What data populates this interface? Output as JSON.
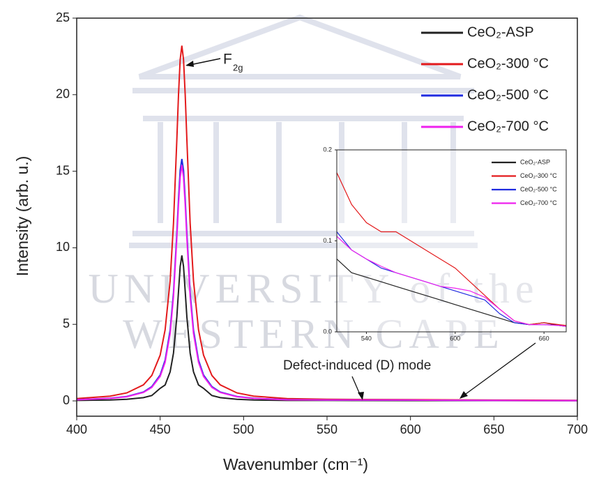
{
  "chart_data": [
    {
      "type": "line",
      "xlabel": "Wavenumber (cm⁻¹)",
      "ylabel": "Intensity (arb. u.)",
      "xlim": [
        400,
        700
      ],
      "ylim": [
        -1,
        25
      ],
      "xticks": [
        400,
        450,
        500,
        550,
        600,
        650,
        700
      ],
      "yticks": [
        0,
        5,
        10,
        15,
        20,
        25
      ],
      "x": [
        400,
        420,
        430,
        440,
        445,
        450,
        453,
        456,
        458,
        460,
        461,
        462,
        463,
        464,
        465,
        466,
        468,
        470,
        473,
        476,
        481,
        486,
        496,
        506,
        526,
        550,
        600,
        650,
        700
      ],
      "series": [
        {
          "name": "CeO₂-ASP",
          "color": "#222222",
          "values": [
            0.03,
            0.06,
            0.1,
            0.21,
            0.35,
            0.82,
            1.04,
            1.9,
            3.12,
            5.48,
            7.16,
            8.78,
            9.5,
            8.78,
            7.16,
            5.48,
            3.12,
            1.9,
            1.04,
            0.82,
            0.35,
            0.21,
            0.1,
            0.06,
            0.03,
            0.03,
            0.02,
            0.02,
            0.01
          ]
        },
        {
          "name": "CeO₂-300 °C",
          "color": "#e31a1c",
          "values": [
            0.15,
            0.31,
            0.52,
            1.05,
            1.66,
            2.99,
            4.64,
            7.84,
            11.6,
            17.06,
            20.0,
            22.3,
            23.2,
            22.3,
            20.0,
            17.06,
            11.6,
            7.84,
            4.64,
            2.99,
            1.66,
            1.05,
            0.52,
            0.31,
            0.15,
            0.1,
            0.08,
            0.05,
            0.04
          ]
        },
        {
          "name": "CeO₂-500 °C",
          "color": "#1f2be0",
          "values": [
            0.08,
            0.17,
            0.29,
            0.58,
            0.93,
            1.69,
            2.66,
            4.62,
            7.07,
            10.94,
            13.19,
            15.06,
            15.8,
            15.06,
            13.19,
            10.94,
            7.07,
            4.62,
            2.66,
            1.69,
            0.93,
            0.58,
            0.29,
            0.17,
            0.08,
            0.06,
            0.05,
            0.03,
            0.02
          ]
        },
        {
          "name": "CeO₂-700 °C",
          "color": "#ee22ee",
          "values": [
            0.07,
            0.16,
            0.27,
            0.55,
            0.88,
            1.6,
            2.52,
            4.4,
            6.8,
            10.6,
            12.8,
            14.6,
            15.4,
            14.6,
            12.8,
            10.6,
            6.8,
            4.4,
            2.52,
            1.6,
            0.88,
            0.55,
            0.27,
            0.16,
            0.07,
            0.06,
            0.05,
            0.03,
            0.02
          ]
        }
      ],
      "peak_label": {
        "base": "F",
        "sub": "2g"
      },
      "annotation": "Defect-induced (D) mode",
      "watermark": [
        "UNIVERSITY of the",
        "WESTERN CAPE"
      ]
    },
    {
      "type": "line",
      "xlim": [
        520,
        675
      ],
      "ylim": [
        0,
        0.2
      ],
      "xticks": [
        540,
        600,
        660
      ],
      "yticks": [
        {
          "value": 0,
          "label": "0.0"
        },
        0.1,
        0.2
      ],
      "x": [
        520,
        530,
        540,
        550,
        560,
        570,
        580,
        590,
        600,
        610,
        620,
        630,
        640,
        650,
        660,
        670,
        675
      ],
      "series": [
        {
          "name": "CeO₂-ASP",
          "color": "#222222",
          "values": [
            0.08,
            0.065,
            0.06,
            0.055,
            0.05,
            0.045,
            0.04,
            0.035,
            0.03,
            0.025,
            0.02,
            0.015,
            0.01,
            0.008,
            0.01,
            0.007,
            0.006
          ]
        },
        {
          "name": "CeO₂-300 °C",
          "color": "#e31a1c",
          "values": [
            0.175,
            0.14,
            0.12,
            0.11,
            0.11,
            0.1,
            0.09,
            0.08,
            0.07,
            0.055,
            0.04,
            0.025,
            0.012,
            0.008,
            0.01,
            0.008,
            0.007
          ]
        },
        {
          "name": "CeO₂-500 °C",
          "color": "#1f2be0",
          "values": [
            0.11,
            0.09,
            0.08,
            0.07,
            0.065,
            0.06,
            0.055,
            0.05,
            0.045,
            0.04,
            0.035,
            0.02,
            0.01,
            0.008,
            0.008,
            0.007,
            0.006
          ]
        },
        {
          "name": "CeO₂-700 °C",
          "color": "#ee22ee",
          "values": [
            0.105,
            0.09,
            0.08,
            0.072,
            0.065,
            0.06,
            0.055,
            0.05,
            0.048,
            0.045,
            0.038,
            0.025,
            0.012,
            0.008,
            0.008,
            0.007,
            0.006
          ]
        }
      ]
    }
  ]
}
